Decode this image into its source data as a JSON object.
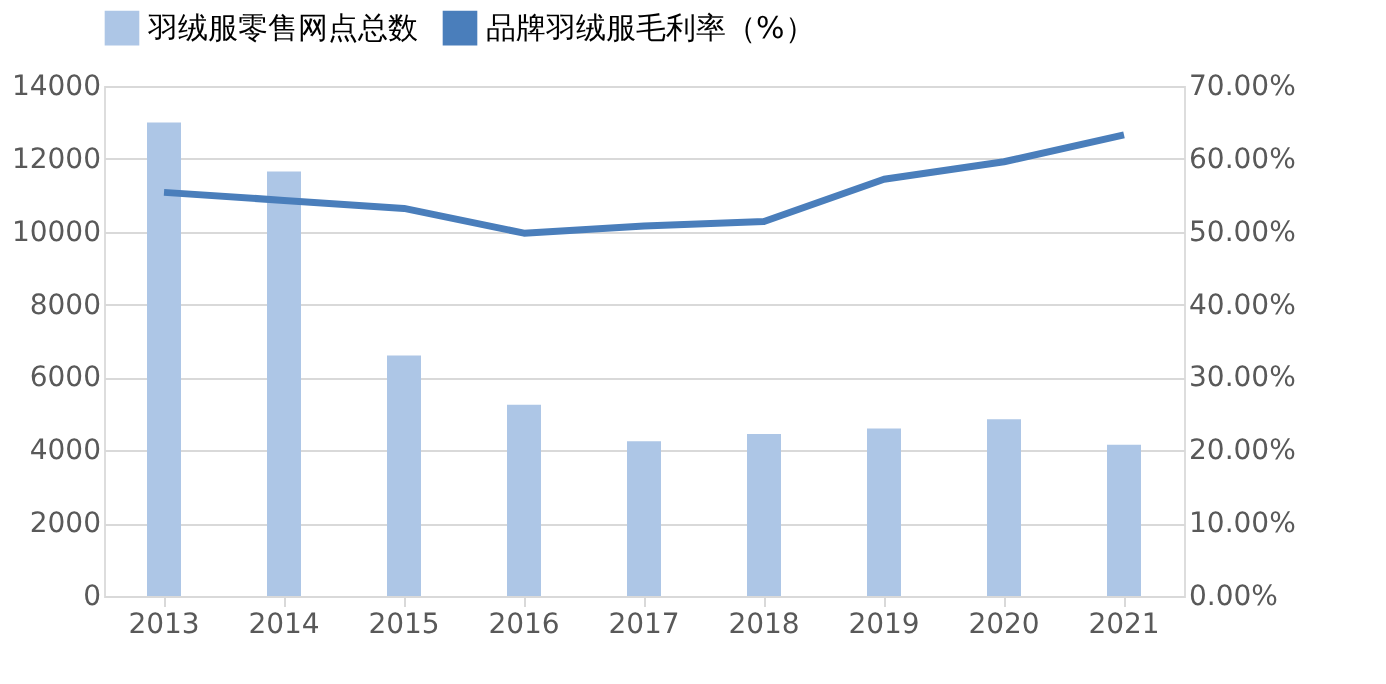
{
  "chart_data": {
    "type": "bar",
    "categories": [
      "2013",
      "2014",
      "2015",
      "2016",
      "2017",
      "2018",
      "2019",
      "2020",
      "2021"
    ],
    "series": [
      {
        "name": "羽绒服零售网点总数",
        "color": "#adc6e6",
        "values": [
          13000,
          11650,
          6600,
          5250,
          4250,
          4450,
          4600,
          4850,
          4150
        ]
      },
      {
        "name": "品牌羽绒服毛利率（%）",
        "type": "line",
        "axis": "y2",
        "color": "#4a7ebb",
        "values": [
          55.4,
          54.3,
          53.2,
          49.8,
          50.8,
          51.4,
          57.2,
          59.6,
          63.3
        ]
      }
    ],
    "ylim": [
      0,
      14000
    ],
    "yticks": [
      0,
      2000,
      4000,
      6000,
      8000,
      10000,
      12000,
      14000
    ],
    "y2lim": [
      0,
      70
    ],
    "y2ticks": [
      {
        "value": 0,
        "label": "0.00%"
      },
      {
        "value": 10,
        "label": "10.00%"
      },
      {
        "value": 20,
        "label": "20.00%"
      },
      {
        "value": 30,
        "label": "30.00%"
      },
      {
        "value": 40,
        "label": "40.00%"
      },
      {
        "value": 50,
        "label": "50.00%"
      },
      {
        "value": 60,
        "label": "60.00%"
      },
      {
        "value": 70,
        "label": "70.00%"
      }
    ],
    "grid": "y",
    "legend": "top",
    "marker": "none",
    "line_style": "solid"
  }
}
